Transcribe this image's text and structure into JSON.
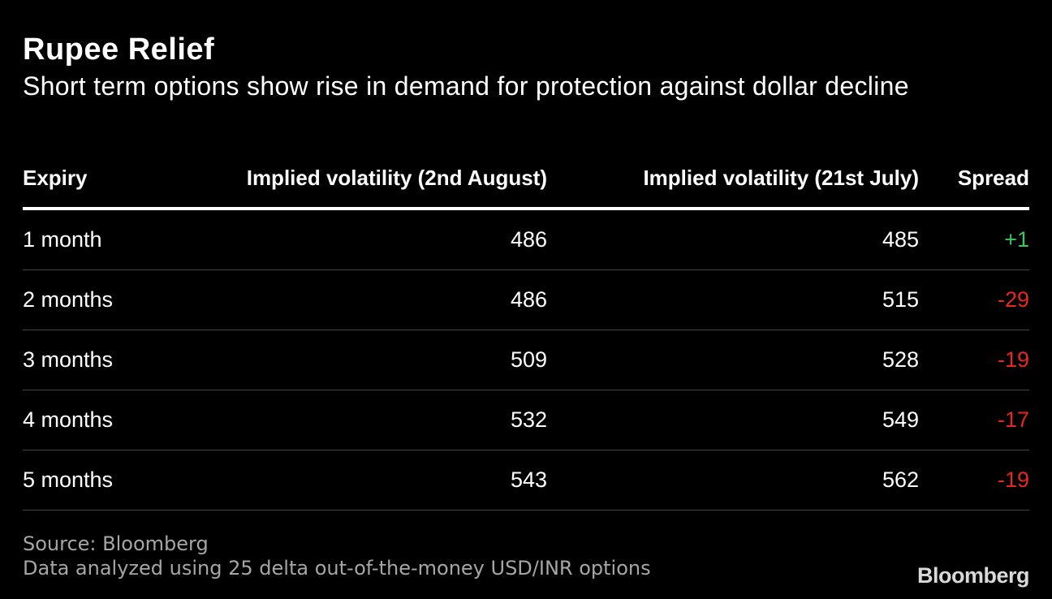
{
  "title": "Rupee Relief",
  "subtitle": "Short term options show rise in demand for protection against dollar decline",
  "chart_data": {
    "type": "table",
    "columns": [
      "Expiry",
      "Implied volatility (2nd August)",
      "Implied volatility (21st July)",
      "Spread"
    ],
    "rows": [
      {
        "expiry": "1 month",
        "iv_aug2": "486",
        "iv_jul21": "485",
        "spread": "+1",
        "sign": "pos"
      },
      {
        "expiry": "2 months",
        "iv_aug2": "486",
        "iv_jul21": "515",
        "spread": "-29",
        "sign": "neg"
      },
      {
        "expiry": "3 months",
        "iv_aug2": "509",
        "iv_jul21": "528",
        "spread": "-19",
        "sign": "neg"
      },
      {
        "expiry": "4 months",
        "iv_aug2": "532",
        "iv_jul21": "549",
        "spread": "-17",
        "sign": "neg"
      },
      {
        "expiry": "5 months",
        "iv_aug2": "543",
        "iv_jul21": "562",
        "spread": "-19",
        "sign": "neg"
      }
    ]
  },
  "footer": {
    "source": "Source: Bloomberg",
    "note": "Data analyzed using 25 delta out-of-the-money USD/INR options",
    "logo": "Bloomberg"
  },
  "colors": {
    "background": "#000000",
    "positive": "#3ec75a",
    "negative": "#e8281e"
  }
}
